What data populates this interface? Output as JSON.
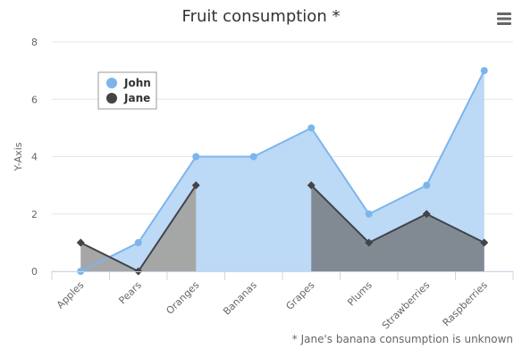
{
  "colors": {
    "john": "#7cb5ec",
    "john_fill": "#bcd9f6",
    "jane": "#434348",
    "jane_fill": "#808890",
    "jane_fill_left": "#a4a4a4",
    "grid": "#e6e6e6"
  },
  "menu_icon": "hamburger-menu-icon",
  "chart_data": {
    "type": "area",
    "title": "Fruit consumption *",
    "ylabel": "Y-Axis",
    "xlabel": "",
    "credit": "* Jane's banana consumption is unknown",
    "categories": [
      "Apples",
      "Pears",
      "Oranges",
      "Bananas",
      "Grapes",
      "Plums",
      "Strawberries",
      "Raspberries"
    ],
    "ylim": [
      0,
      8
    ],
    "yticks": [
      0,
      2,
      4,
      6,
      8
    ],
    "grid": true,
    "legend_position": "top-left",
    "series": [
      {
        "name": "John",
        "values": [
          0,
          1,
          4,
          4,
          5,
          2,
          3,
          7
        ]
      },
      {
        "name": "Jane",
        "values": [
          1,
          0,
          3,
          null,
          3,
          1,
          2,
          1
        ]
      }
    ]
  }
}
